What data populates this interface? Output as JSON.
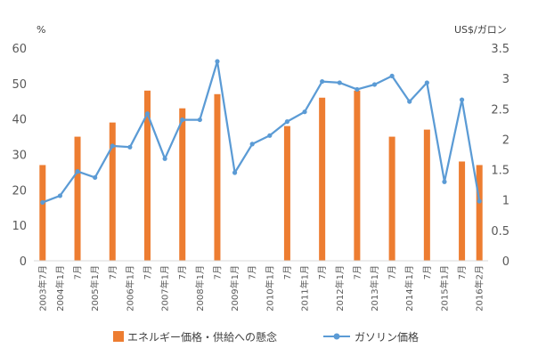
{
  "chart_data": {
    "type": "bar+line",
    "left_axis_unit": "%",
    "right_axis_unit": "US$/ガロン",
    "left_ylim": [
      0,
      60
    ],
    "left_ticks": [
      "0",
      "10",
      "20",
      "30",
      "40",
      "50",
      "60"
    ],
    "right_ylim": [
      0,
      3.5
    ],
    "right_ticks": [
      "0",
      "0.5",
      "1",
      "1.5",
      "2",
      "2.5",
      "3",
      "3.5"
    ],
    "grid": false,
    "legend_position": "bottom",
    "categories": [
      "2003年7月",
      "2004年1月",
      "7月",
      "2005年1月",
      "7月",
      "2006年1月",
      "7月",
      "2007年1月",
      "7月",
      "2008年1月",
      "7月",
      "2009年1月",
      "7月",
      "2010年1月",
      "7月",
      "2011年1月",
      "7月",
      "2012年1月",
      "7月",
      "2013年1月",
      "7月",
      "2014年1月",
      "7月",
      "2015年1月",
      "7月",
      "2016年2月"
    ],
    "series": [
      {
        "name": "エネルギー価格・供給への懸念",
        "type": "bar",
        "axis": "left",
        "color": "#ED7D31",
        "values": [
          27,
          null,
          35,
          null,
          39,
          null,
          48,
          null,
          43,
          null,
          47,
          null,
          null,
          null,
          38,
          null,
          46,
          null,
          48,
          null,
          35,
          null,
          37,
          null,
          28,
          27
        ]
      },
      {
        "name": "ガソリン価格",
        "type": "line",
        "axis": "right",
        "color": "#5B9BD5",
        "values": [
          0.96,
          1.07,
          1.47,
          1.37,
          1.89,
          1.87,
          2.42,
          1.68,
          2.32,
          2.32,
          3.28,
          1.45,
          1.92,
          2.06,
          2.29,
          2.45,
          2.95,
          2.93,
          2.82,
          2.9,
          3.04,
          2.62,
          2.93,
          1.3,
          2.65,
          0.98
        ]
      }
    ]
  }
}
